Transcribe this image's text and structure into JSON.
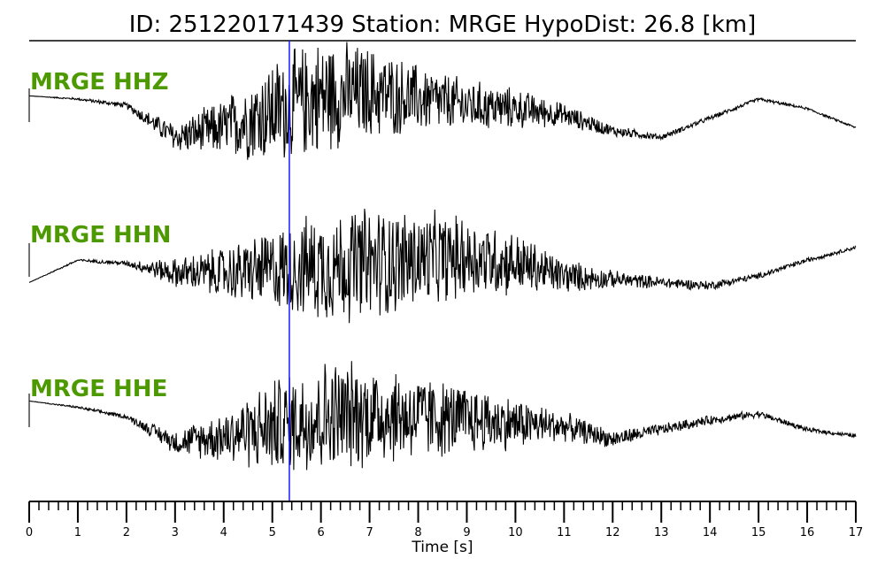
{
  "chart_data": {
    "type": "line",
    "title": "ID: 251220171439   Station: MRGE   HypoDist:    26.8 [km]",
    "xlabel": "Time [s]",
    "xlim": [
      0,
      17
    ],
    "x_ticks": [
      "0",
      "1",
      "2",
      "3",
      "4",
      "5",
      "6",
      "7",
      "8",
      "9",
      "10",
      "11",
      "12",
      "13",
      "14",
      "15",
      "16",
      "17"
    ],
    "minor_tick_step": 0.2,
    "pick_time_s": 5.35,
    "pick_color": "#1a1aff",
    "trace_color": "#000000",
    "label_color": "#4c9900",
    "channels": [
      {
        "label": "MRGE HHZ",
        "amplitude_envelope": [
          0.0,
          0.02,
          0.05,
          0.25,
          0.5,
          0.9,
          1.0,
          0.8,
          0.6,
          0.45,
          0.35,
          0.2,
          0.1,
          0.05,
          0.04,
          0.03,
          0.02,
          0.02
        ],
        "trend": [
          0.3,
          0.25,
          0.15,
          -0.35,
          -0.2,
          0.05,
          0.3,
          0.35,
          0.25,
          0.15,
          0.1,
          0.0,
          -0.25,
          -0.35,
          -0.05,
          0.25,
          0.1,
          -0.2
        ]
      },
      {
        "label": "MRGE HHN",
        "amplitude_envelope": [
          0.0,
          0.02,
          0.04,
          0.25,
          0.45,
          0.7,
          0.95,
          1.0,
          0.85,
          0.7,
          0.55,
          0.3,
          0.15,
          0.1,
          0.08,
          0.05,
          0.04,
          0.03
        ],
        "trend": [
          -0.2,
          0.15,
          0.1,
          -0.05,
          -0.05,
          0.0,
          0.05,
          0.1,
          0.15,
          0.2,
          0.1,
          -0.1,
          -0.15,
          -0.2,
          -0.25,
          -0.1,
          0.15,
          0.35
        ]
      },
      {
        "label": "MRGE HHE",
        "amplitude_envelope": [
          0.0,
          0.02,
          0.04,
          0.2,
          0.45,
          0.8,
          1.0,
          0.9,
          0.75,
          0.6,
          0.45,
          0.25,
          0.15,
          0.1,
          0.08,
          0.06,
          0.04,
          0.03
        ],
        "trend": [
          0.3,
          0.2,
          0.05,
          -0.35,
          -0.25,
          -0.1,
          0.05,
          0.1,
          0.05,
          0.0,
          -0.05,
          -0.1,
          -0.3,
          -0.15,
          0.0,
          0.1,
          -0.15,
          -0.25
        ]
      }
    ]
  }
}
